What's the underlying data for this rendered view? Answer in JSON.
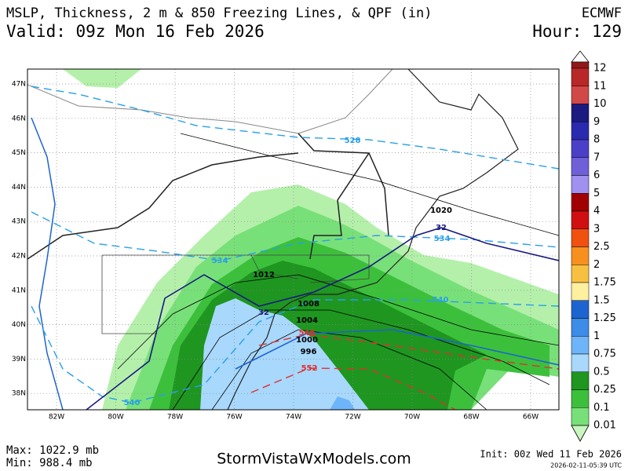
{
  "header": {
    "title": "MSLP, Thickness, 2 m & 850 Freezing Lines, & QPF (in)",
    "model": "ECMWF",
    "valid": "Valid: 09z Mon 16 Feb 2026",
    "hour": "Hour: 129"
  },
  "map": {
    "lat_labels": [
      "47N",
      "46N",
      "45N",
      "44N",
      "43N",
      "42N",
      "41N",
      "40N",
      "39N",
      "38N"
    ],
    "lon_labels": [
      "82W",
      "80W",
      "78W",
      "76W",
      "74W",
      "72W",
      "70W",
      "68W",
      "66W"
    ],
    "isobar_labels": [
      "1020",
      "1012",
      "1008",
      "1004",
      "1000",
      "996"
    ],
    "thickness_labels": [
      "528",
      "534",
      "534",
      "540",
      "540",
      "546",
      "552"
    ],
    "freezing_labels": [
      "32",
      "32"
    ]
  },
  "legend": {
    "labels": [
      "12",
      "11",
      "10",
      "9",
      "8",
      "7",
      "6",
      "5",
      "4",
      "3",
      "2.5",
      "2",
      "1.75",
      "1.5",
      "1.25",
      "1",
      "0.75",
      "0.5",
      "0.25",
      "0.1",
      "0.01"
    ],
    "colors": [
      "#901818",
      "#b82828",
      "#d04848",
      "#1a1a80",
      "#2a2ab0",
      "#4a40c8",
      "#7060d8",
      "#a090f0",
      "#a00000",
      "#d01010",
      "#f05010",
      "#f89020",
      "#f8c040",
      "#fff0a0",
      "#1e64d0",
      "#3c8ce8",
      "#6eb4f8",
      "#a8d8fc",
      "#1e9620",
      "#3cc03c",
      "#78e078"
    ]
  },
  "footer": {
    "max": "Max: 1022.9 mb",
    "min": "Min: 988.4 mb",
    "site": "StormVistaWxModels.com",
    "init": "Init: 00z Wed 11 Feb 2026",
    "timestamp": "2026-02-11-05:39 UTC"
  }
}
